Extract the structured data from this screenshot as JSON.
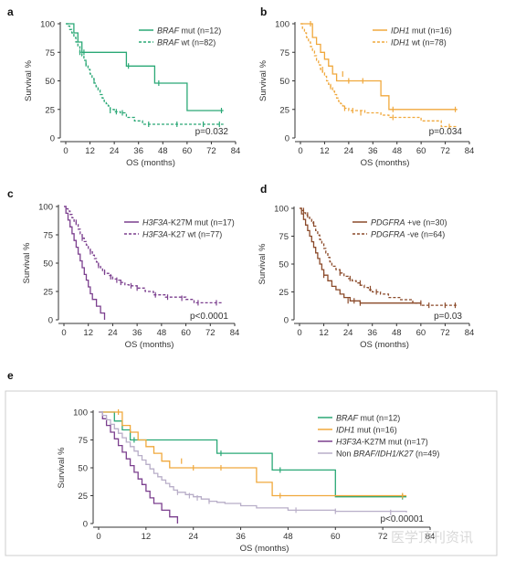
{
  "figure": {
    "watermark": "医学顶刊资讯"
  },
  "chart_data": [
    {
      "panel": "a",
      "type": "line",
      "xlabel": "OS (months)",
      "ylabel": "Survival %",
      "xticks": [
        0,
        12,
        24,
        36,
        48,
        60,
        72,
        84
      ],
      "yticks": [
        0,
        25,
        50,
        75,
        100
      ],
      "xlim": [
        0,
        84
      ],
      "ylim": [
        0,
        100
      ],
      "pvalue": "p=0.032",
      "series": [
        {
          "name_main": "BRAF",
          "name_rest": " mut (n=12)",
          "color": "#2aa876",
          "dash": "",
          "x": [
            0,
            4,
            6,
            8,
            30,
            44,
            60,
            78
          ],
          "y": [
            100,
            92,
            84,
            75,
            63,
            48,
            24,
            24
          ],
          "ticks": [
            [
              9,
              75
            ],
            [
              31,
              63
            ],
            [
              46,
              48
            ],
            [
              77,
              24
            ]
          ]
        },
        {
          "name_main": "BRAF",
          "name_rest": " wt (n=82)",
          "color": "#2aa876",
          "dash": "3,2",
          "x": [
            0,
            1,
            2,
            3,
            4,
            5,
            6,
            7,
            8,
            9,
            10,
            11,
            12,
            13,
            14,
            15,
            16,
            17,
            18,
            19,
            20,
            21,
            22,
            24,
            27,
            30,
            34,
            38,
            78
          ],
          "y": [
            100,
            98,
            95,
            92,
            88,
            84,
            80,
            75,
            72,
            68,
            64,
            60,
            56,
            52,
            48,
            45,
            42,
            38,
            35,
            32,
            30,
            28,
            25,
            23,
            22,
            18,
            15,
            12,
            12
          ],
          "ticks": [
            [
              7,
              75
            ],
            [
              10,
              65
            ],
            [
              14,
              50
            ],
            [
              22,
              24
            ],
            [
              25,
              23
            ],
            [
              28,
              22
            ],
            [
              41,
              12
            ],
            [
              55,
              12
            ],
            [
              68,
              12
            ],
            [
              76,
              12
            ]
          ]
        }
      ]
    },
    {
      "panel": "b",
      "type": "line",
      "xlabel": "OS (months)",
      "ylabel": "Survival %",
      "xticks": [
        0,
        12,
        24,
        36,
        48,
        60,
        72,
        84
      ],
      "yticks": [
        0,
        25,
        50,
        75,
        100
      ],
      "xlim": [
        0,
        84
      ],
      "ylim": [
        0,
        100
      ],
      "pvalue": "p=0.034",
      "series": [
        {
          "name_main": "IDH1",
          "name_rest": " mut (n=16)",
          "color": "#f0a83c",
          "dash": "",
          "x": [
            0,
            6,
            8,
            10,
            12,
            14,
            16,
            18,
            28,
            40,
            44,
            78
          ],
          "y": [
            100,
            88,
            82,
            75,
            69,
            63,
            56,
            50,
            50,
            37,
            25,
            25
          ],
          "ticks": [
            [
              5,
              100
            ],
            [
              21,
              56
            ],
            [
              24,
              50
            ],
            [
              31,
              50
            ],
            [
              46,
              25
            ],
            [
              77,
              25
            ]
          ]
        },
        {
          "name_main": "IDH1",
          "name_rest": " wt (n=78)",
          "color": "#f0a83c",
          "dash": "3,2",
          "x": [
            0,
            1,
            2,
            3,
            4,
            5,
            6,
            7,
            8,
            9,
            10,
            11,
            12,
            13,
            14,
            15,
            16,
            17,
            18,
            19,
            20,
            21,
            22,
            24,
            28,
            32,
            36,
            40,
            44,
            60,
            70,
            78
          ],
          "y": [
            100,
            96,
            92,
            88,
            84,
            80,
            76,
            72,
            68,
            64,
            60,
            57,
            54,
            50,
            47,
            44,
            41,
            38,
            35,
            32,
            30,
            28,
            26,
            24,
            24,
            22,
            22,
            20,
            18,
            15,
            10,
            10
          ],
          "ticks": [
            [
              11,
              60
            ],
            [
              15,
              45
            ],
            [
              22,
              26
            ],
            [
              26,
              24
            ],
            [
              30,
              22
            ],
            [
              46,
              18
            ],
            [
              74,
              10
            ]
          ]
        }
      ]
    },
    {
      "panel": "c",
      "type": "line",
      "xlabel": "OS (months)",
      "ylabel": "Survival %",
      "xticks": [
        0,
        12,
        24,
        36,
        48,
        60,
        72,
        84
      ],
      "yticks": [
        0,
        25,
        50,
        75,
        100
      ],
      "xlim": [
        0,
        84
      ],
      "ylim": [
        0,
        100
      ],
      "pvalue": "p<0.0001",
      "series": [
        {
          "name_main": "H3F3A",
          "name_rest": "-K27M mut (n=17)",
          "color": "#7b3f8e",
          "dash": "",
          "x": [
            0,
            1,
            2,
            3,
            4,
            5,
            6,
            7,
            8,
            9,
            10,
            11,
            12,
            13,
            14,
            15,
            16,
            17,
            18,
            19,
            20
          ],
          "y": [
            100,
            94,
            88,
            82,
            76,
            70,
            64,
            58,
            52,
            46,
            40,
            35,
            29,
            23,
            18,
            18,
            12,
            12,
            6,
            6,
            0
          ],
          "ticks": []
        },
        {
          "name_main": "H3F3A",
          "name_rest": "-K27 wt (n=77)",
          "color": "#7b3f8e",
          "dash": "3,2",
          "x": [
            0,
            1,
            2,
            3,
            4,
            5,
            6,
            7,
            8,
            9,
            10,
            11,
            12,
            13,
            14,
            15,
            16,
            17,
            18,
            19,
            20,
            22,
            24,
            26,
            28,
            30,
            32,
            36,
            40,
            44,
            50,
            56,
            60,
            64,
            78
          ],
          "y": [
            100,
            98,
            96,
            93,
            90,
            87,
            84,
            80,
            76,
            72,
            69,
            66,
            63,
            60,
            57,
            54,
            51,
            48,
            46,
            43,
            41,
            39,
            36,
            35,
            33,
            31,
            30,
            28,
            25,
            22,
            20,
            20,
            18,
            15,
            15
          ],
          "ticks": [
            [
              6,
              86
            ],
            [
              9,
              72
            ],
            [
              13,
              60
            ],
            [
              17,
              48
            ],
            [
              20,
              42
            ],
            [
              23,
              38
            ],
            [
              26,
              35
            ],
            [
              28,
              33
            ],
            [
              33,
              30
            ],
            [
              36,
              28
            ],
            [
              45,
              22
            ],
            [
              51,
              20
            ],
            [
              58,
              19
            ],
            [
              66,
              15
            ],
            [
              75,
              15
            ]
          ]
        }
      ]
    },
    {
      "panel": "d",
      "type": "line",
      "xlabel": "OS (months)",
      "ylabel": "Survival %",
      "xticks": [
        0,
        12,
        24,
        36,
        48,
        60,
        72,
        84
      ],
      "yticks": [
        0,
        25,
        50,
        75,
        100
      ],
      "xlim": [
        0,
        84
      ],
      "ylim": [
        0,
        100
      ],
      "pvalue": "p=0.03",
      "series": [
        {
          "name_main": "PDGFRA",
          "name_rest": " +ve (n=30)",
          "color": "#8b4a2a",
          "dash": "",
          "x": [
            0,
            1,
            2,
            3,
            4,
            5,
            6,
            7,
            8,
            9,
            10,
            11,
            12,
            14,
            16,
            18,
            20,
            22,
            25,
            30,
            60
          ],
          "y": [
            100,
            95,
            90,
            85,
            80,
            75,
            70,
            65,
            60,
            55,
            50,
            45,
            40,
            35,
            30,
            27,
            23,
            20,
            17,
            15,
            15
          ],
          "ticks": [
            [
              12,
              40
            ],
            [
              24,
              17
            ],
            [
              27,
              17
            ],
            [
              30,
              15
            ],
            [
              60,
              15
            ]
          ]
        },
        {
          "name_main": "PDGFRA",
          "name_rest": " -ve (n=64)",
          "color": "#8b4a2a",
          "dash": "3,2",
          "x": [
            0,
            1,
            2,
            3,
            4,
            5,
            6,
            7,
            8,
            9,
            10,
            11,
            12,
            13,
            14,
            15,
            16,
            18,
            20,
            22,
            24,
            26,
            28,
            30,
            32,
            34,
            36,
            40,
            44,
            50,
            56,
            60,
            78
          ],
          "y": [
            100,
            98,
            96,
            94,
            92,
            90,
            87,
            84,
            80,
            76,
            72,
            68,
            64,
            60,
            56,
            52,
            48,
            45,
            42,
            39,
            37,
            35,
            33,
            31,
            29,
            27,
            25,
            23,
            20,
            18,
            15,
            13,
            13
          ],
          "ticks": [
            [
              2,
              98
            ],
            [
              4,
              94
            ],
            [
              7,
              86
            ],
            [
              20,
              42
            ],
            [
              25,
              37
            ],
            [
              30,
              33
            ],
            [
              35,
              28
            ],
            [
              38,
              25
            ],
            [
              64,
              13
            ],
            [
              72,
              13
            ],
            [
              77,
              13
            ]
          ]
        }
      ]
    },
    {
      "panel": "e",
      "type": "line",
      "xlabel": "OS (months)",
      "ylabel": "Survival %",
      "xticks": [
        0,
        12,
        24,
        36,
        48,
        60,
        72,
        84
      ],
      "yticks": [
        0,
        25,
        50,
        75,
        100
      ],
      "xlim": [
        0,
        84
      ],
      "ylim": [
        0,
        100
      ],
      "pvalue": "p<0.00001",
      "series": [
        {
          "name_main": "BRAF",
          "name_rest": " mut (n=12)",
          "color": "#2aa876",
          "dash": "",
          "x": [
            0,
            4,
            6,
            8,
            30,
            44,
            60,
            78
          ],
          "y": [
            100,
            92,
            84,
            75,
            63,
            48,
            24,
            24
          ],
          "ticks": [
            [
              9,
              75
            ],
            [
              31,
              63
            ],
            [
              46,
              48
            ],
            [
              77,
              24
            ]
          ]
        },
        {
          "name_main": "IDH1",
          "name_rest": " mut (n=16)",
          "color": "#f0a83c",
          "dash": "",
          "x": [
            0,
            6,
            8,
            10,
            12,
            14,
            16,
            18,
            28,
            40,
            44,
            78
          ],
          "y": [
            100,
            88,
            82,
            75,
            69,
            63,
            56,
            50,
            50,
            37,
            25,
            25
          ],
          "ticks": [
            [
              5,
              100
            ],
            [
              21,
              56
            ],
            [
              24,
              50
            ],
            [
              31,
              50
            ],
            [
              46,
              25
            ],
            [
              77,
              25
            ]
          ]
        },
        {
          "name_main": "H3F3A",
          "name_rest": "-K27M mut (n=17)",
          "color": "#7b3f8e",
          "dash": "",
          "x": [
            0,
            1,
            2,
            3,
            4,
            5,
            6,
            7,
            8,
            9,
            10,
            11,
            12,
            13,
            14,
            15,
            16,
            17,
            18,
            19,
            20
          ],
          "y": [
            100,
            94,
            88,
            82,
            76,
            70,
            64,
            58,
            52,
            46,
            40,
            35,
            29,
            23,
            18,
            18,
            12,
            12,
            6,
            6,
            0
          ],
          "ticks": []
        },
        {
          "name_prefix": "Non ",
          "name_main": "BRAF/IDH1/K27",
          "name_rest": " (n=49)",
          "color": "#b8aec8",
          "dash": "",
          "x": [
            0,
            1,
            2,
            3,
            4,
            5,
            6,
            7,
            8,
            9,
            10,
            11,
            12,
            13,
            14,
            15,
            16,
            17,
            18,
            19,
            20,
            22,
            24,
            26,
            28,
            30,
            32,
            36,
            40,
            48,
            60,
            78
          ],
          "y": [
            100,
            97,
            93,
            89,
            85,
            81,
            77,
            73,
            69,
            65,
            61,
            57,
            53,
            49,
            45,
            42,
            39,
            36,
            33,
            30,
            28,
            26,
            24,
            22,
            20,
            19,
            18,
            16,
            14,
            12,
            11,
            10
          ],
          "ticks": [
            [
              20,
              28
            ],
            [
              23,
              25
            ],
            [
              25,
              23
            ],
            [
              28,
              20
            ],
            [
              50,
              12
            ],
            [
              60,
              11
            ],
            [
              74,
              10
            ]
          ]
        }
      ]
    }
  ]
}
